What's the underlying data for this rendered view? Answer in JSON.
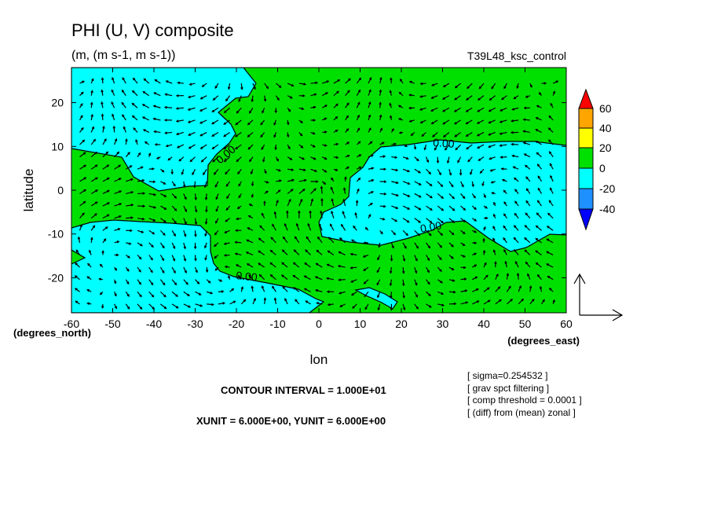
{
  "chart_data": {
    "type": "contour",
    "title": "PHI (U, V) composite",
    "units": "(m, (m s-1, m s-1))",
    "run_name": "T39L48_ksc_control",
    "xlabel": "lon",
    "xunit": "(degrees_east)",
    "ylabel": "latitude",
    "yunit": "(degrees_north)",
    "xlim": [
      -60,
      60
    ],
    "ylim": [
      -28,
      28
    ],
    "x_ticks": [
      "-60",
      "-50",
      "-40",
      "-30",
      "-20",
      "-10",
      "0",
      "10",
      "20",
      "30",
      "40",
      "50",
      "60"
    ],
    "y_ticks": [
      "20",
      "10",
      "0",
      "-10",
      "-20"
    ],
    "colorbar": {
      "labels": [
        "60",
        "40",
        "20",
        "0",
        "-20",
        "-40"
      ],
      "colors": [
        "#ff0000",
        "#ffa500",
        "#ffff00",
        "#00e000",
        "#00ffff",
        "#1e90ff",
        "#0000ff"
      ]
    },
    "contour_labels": [
      "0.00",
      "0.00",
      "0.00",
      "0.00"
    ],
    "contour_interval": "CONTOUR INTERVAL = 1.000E+01",
    "vector_units": "XUNIT = 6.000E+00, YUNIT = 6.000E+00",
    "notes": [
      "[ sigma=0.254532 ]",
      "[ grav spct filtering ]",
      "[ comp threshold = 0.0001 ]",
      "[ (diff) from (mean) zonal ]"
    ]
  }
}
